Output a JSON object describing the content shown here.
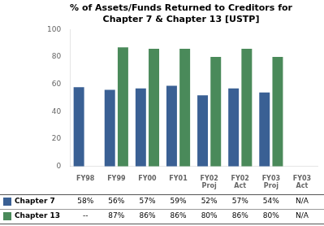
{
  "chart_data": {
    "type": "bar",
    "title": "% of Assets/Funds Returned to Creditors for\nChapter 7 & Chapter 13 [USTP]",
    "categories": [
      "FY98",
      "FY99",
      "FY00",
      "FY01",
      "FY02\nProj",
      "FY02\nAct",
      "FY03\nProj",
      "FY03\nAct"
    ],
    "series": [
      {
        "name": "Chapter 7",
        "color": "#3a6094",
        "values": [
          58,
          56,
          57,
          59,
          52,
          57,
          54,
          null
        ],
        "value_labels": [
          "58%",
          "56%",
          "57%",
          "59%",
          "52%",
          "57%",
          "54%",
          "N/A"
        ]
      },
      {
        "name": "Chapter 13",
        "color": "#4a8a5a",
        "values": [
          null,
          87,
          86,
          86,
          80,
          86,
          80,
          null
        ],
        "value_labels": [
          "--",
          "87%",
          "86%",
          "86%",
          "80%",
          "86%",
          "80%",
          "N/A"
        ]
      }
    ],
    "ylim": [
      0,
      100
    ],
    "yticks": [
      0,
      20,
      40,
      60,
      80,
      100
    ],
    "grid": false,
    "legend": "bottom",
    "data_labels": true
  }
}
